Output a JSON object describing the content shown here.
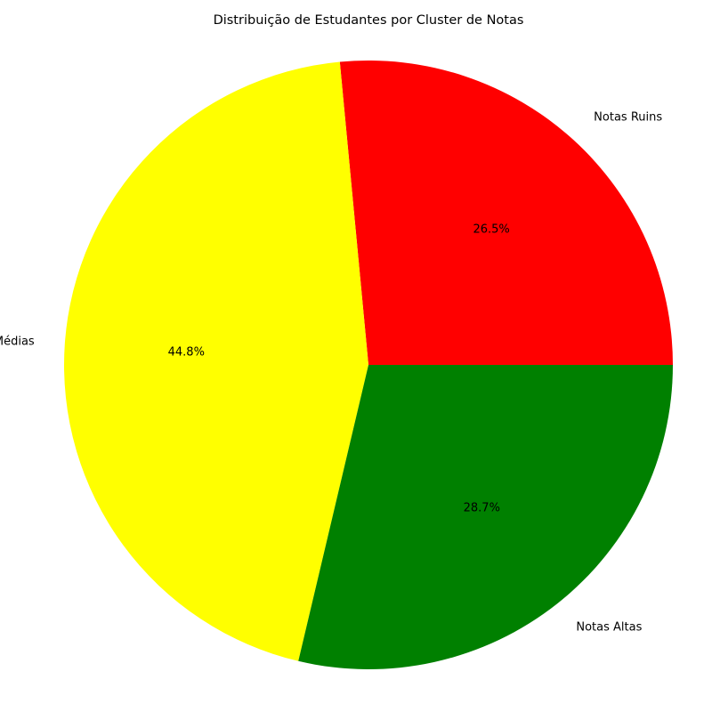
{
  "chart_data": {
    "type": "pie",
    "title": "Distribuição de Estudantes por Cluster de Notas",
    "categories": [
      "Notas Ruins",
      "Notas Médias",
      "Notas Altas"
    ],
    "values": [
      26.5,
      44.8,
      28.7
    ],
    "percent_labels": [
      "26.5%",
      "44.8%",
      "28.7%"
    ],
    "colors": [
      "#ff0000",
      "#ffff00",
      "#008000"
    ],
    "start_angle_deg": 0,
    "direction": "counterclockwise",
    "legend": "none"
  }
}
